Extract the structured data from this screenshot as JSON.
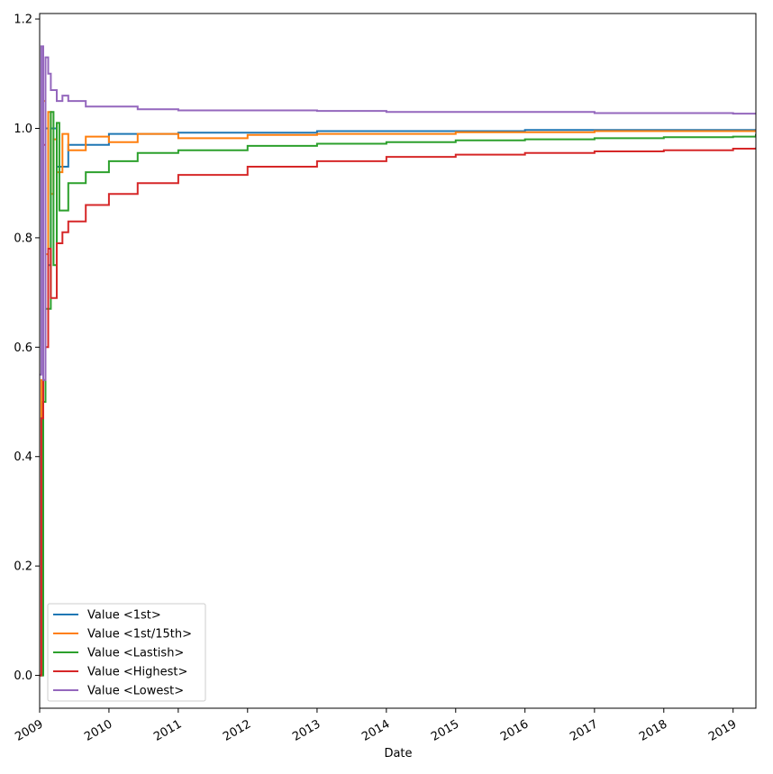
{
  "chart_data": {
    "type": "line",
    "title": "",
    "xlabel": "Date",
    "ylabel": "",
    "xlim": [
      "2009-01-01",
      "2019-05-01"
    ],
    "ylim": [
      -0.06,
      1.21
    ],
    "x_ticks": [
      "2009",
      "2010",
      "2011",
      "2012",
      "2013",
      "2014",
      "2015",
      "2016",
      "2017",
      "2018",
      "2019"
    ],
    "y_ticks": [
      "0.0",
      "0.2",
      "0.4",
      "0.6",
      "0.8",
      "1.0",
      "1.2"
    ],
    "grid": false,
    "legend_position": "lower-left",
    "series": [
      {
        "name": "Value <1st>",
        "color": "#1f77b4",
        "x": [
          "2009-01-01",
          "2009-01-15",
          "2009-02-01",
          "2009-02-15",
          "2009-03-01",
          "2009-04-01",
          "2009-06-01",
          "2010-01-01",
          "2011-01-01",
          "2013-01-01",
          "2016-01-01",
          "2019-05-01"
        ],
        "y": [
          0.0,
          0.5,
          1.0,
          0.75,
          1.0,
          0.93,
          0.97,
          0.99,
          0.992,
          0.995,
          0.997,
          0.998
        ]
      },
      {
        "name": "Value <1st/15th>",
        "color": "#ff7f0e",
        "x": [
          "2009-01-01",
          "2009-01-10",
          "2009-01-20",
          "2009-02-01",
          "2009-02-15",
          "2009-03-01",
          "2009-03-15",
          "2009-04-01",
          "2009-05-01",
          "2009-06-01",
          "2009-09-01",
          "2010-01-01",
          "2010-06-01",
          "2011-01-01",
          "2012-01-01",
          "2013-01-01",
          "2015-01-01",
          "2017-01-01",
          "2019-05-01"
        ],
        "y": [
          0.0,
          0.54,
          1.05,
          0.77,
          1.03,
          0.88,
          0.98,
          0.92,
          0.99,
          0.96,
          0.985,
          0.975,
          0.99,
          0.982,
          0.988,
          0.99,
          0.993,
          0.995,
          0.997
        ]
      },
      {
        "name": "Value <Lastish>",
        "color": "#2ca02c",
        "x": [
          "2009-01-01",
          "2009-01-20",
          "2009-02-01",
          "2009-03-01",
          "2009-03-15",
          "2009-04-01",
          "2009-04-15",
          "2009-06-01",
          "2009-09-01",
          "2010-01-01",
          "2010-06-01",
          "2011-01-01",
          "2012-01-01",
          "2013-01-01",
          "2014-01-01",
          "2015-01-01",
          "2016-01-01",
          "2017-01-01",
          "2018-01-01",
          "2019-01-01",
          "2019-05-01"
        ],
        "y": [
          0.0,
          0.5,
          0.67,
          1.03,
          0.75,
          1.01,
          0.85,
          0.9,
          0.92,
          0.94,
          0.955,
          0.96,
          0.968,
          0.972,
          0.975,
          0.978,
          0.98,
          0.982,
          0.984,
          0.985,
          0.99
        ]
      },
      {
        "name": "Value <Highest>",
        "color": "#d62728",
        "x": [
          "2009-01-01",
          "2009-01-10",
          "2009-01-20",
          "2009-02-01",
          "2009-02-15",
          "2009-03-01",
          "2009-04-01",
          "2009-05-01",
          "2009-06-01",
          "2009-09-01",
          "2010-01-01",
          "2010-06-01",
          "2011-01-01",
          "2012-01-01",
          "2013-01-01",
          "2014-01-01",
          "2015-01-01",
          "2016-01-01",
          "2017-01-01",
          "2018-01-01",
          "2019-01-01",
          "2019-05-01"
        ],
        "y": [
          0.0,
          0.47,
          0.97,
          0.6,
          0.78,
          0.69,
          0.79,
          0.81,
          0.83,
          0.86,
          0.88,
          0.9,
          0.915,
          0.93,
          0.94,
          0.948,
          0.952,
          0.955,
          0.958,
          0.96,
          0.963,
          0.965
        ]
      },
      {
        "name": "Value <Lowest>",
        "color": "#9467bd",
        "x": [
          "2009-01-01",
          "2009-01-10",
          "2009-01-20",
          "2009-02-01",
          "2009-02-15",
          "2009-03-01",
          "2009-04-01",
          "2009-05-01",
          "2009-06-01",
          "2009-09-01",
          "2010-01-01",
          "2010-06-01",
          "2011-01-01",
          "2012-01-01",
          "2013-01-01",
          "2014-01-01",
          "2015-01-01",
          "2016-01-01",
          "2017-01-01",
          "2018-01-01",
          "2019-01-01",
          "2019-05-01"
        ],
        "y": [
          0.55,
          1.15,
          0.54,
          1.13,
          1.1,
          1.07,
          1.05,
          1.06,
          1.05,
          1.04,
          1.04,
          1.035,
          1.033,
          1.033,
          1.032,
          1.03,
          1.03,
          1.03,
          1.028,
          1.028,
          1.027,
          1.028
        ]
      }
    ]
  }
}
